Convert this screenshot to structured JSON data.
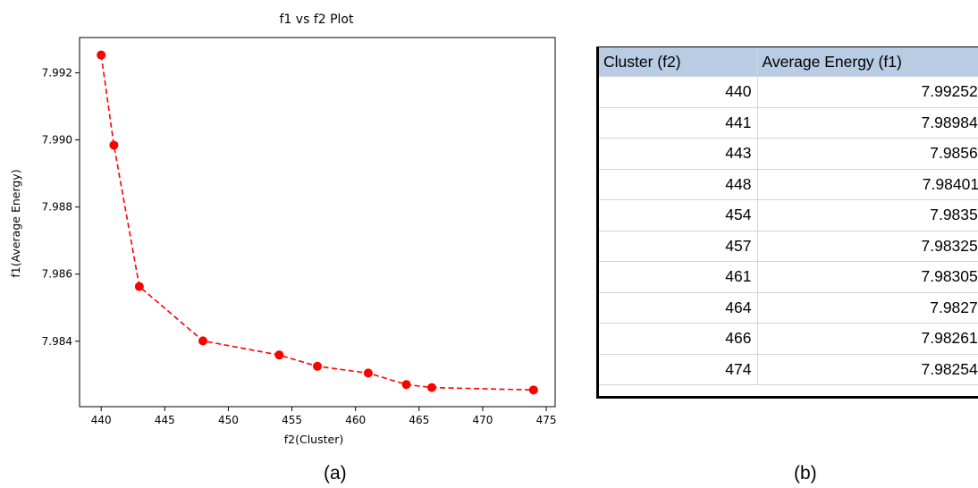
{
  "chart_data": {
    "type": "line",
    "title": "f1 vs f2 Plot",
    "xlabel": "f2(Cluster)",
    "ylabel": "f1(Average Energy)",
    "x": [
      440,
      441,
      443,
      448,
      454,
      457,
      461,
      464,
      466,
      474
    ],
    "series": [
      {
        "values": [
          7.992529,
          7.989842,
          7.98563,
          7.984011,
          7.98359,
          7.983254,
          7.983052,
          7.98271,
          7.982619,
          7.982547
        ]
      }
    ],
    "xticks": [
      "440",
      "445",
      "450",
      "455",
      "460",
      "465",
      "470",
      "475"
    ],
    "yticks": [
      "7.984",
      "7.986",
      "7.988",
      "7.990",
      "7.992"
    ],
    "xlim": [
      438.3,
      475.7
    ],
    "ylim": [
      7.98205,
      7.99305
    ],
    "line_style": "dashed",
    "marker": "circle",
    "color": "#ff0000",
    "grid": false
  },
  "table": {
    "headers": [
      "Cluster (f2)",
      "Average Energy (f1)"
    ],
    "rows": [
      [
        "440",
        "7.992529"
      ],
      [
        "441",
        "7.989842"
      ],
      [
        "443",
        "7.98563"
      ],
      [
        "448",
        "7.984011"
      ],
      [
        "454",
        "7.98359"
      ],
      [
        "457",
        "7.983254"
      ],
      [
        "461",
        "7.983052"
      ],
      [
        "464",
        "7.98271"
      ],
      [
        "466",
        "7.982619"
      ],
      [
        "474",
        "7.982547"
      ]
    ]
  },
  "captions": {
    "a": "(a)",
    "b": "(b)"
  }
}
